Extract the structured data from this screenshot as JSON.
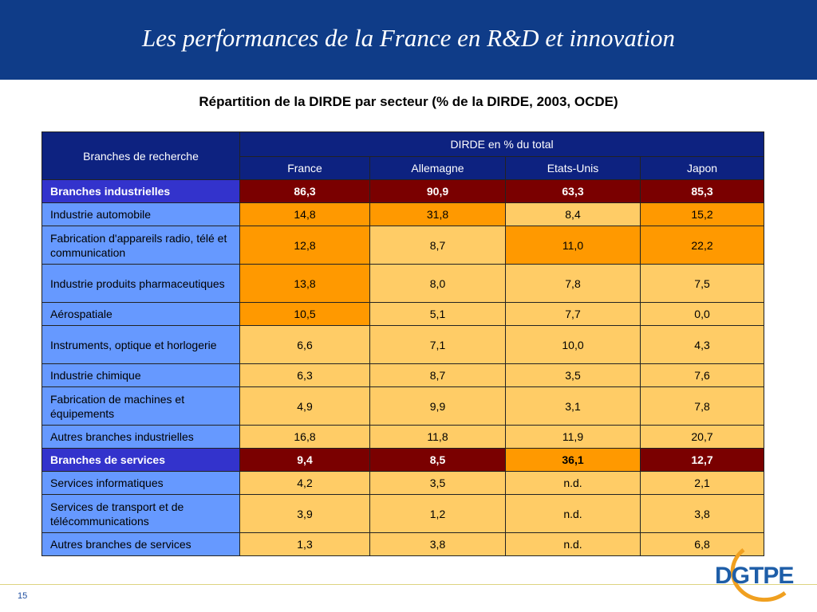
{
  "header": {
    "title": "Les performances de la France en R&D et innovation"
  },
  "subtitle": "Répartition de la DIRDE par secteur (% de la DIRDE, 2003, OCDE)",
  "table": {
    "corner": "Branches de recherche",
    "group_header": "DIRDE en % du total",
    "columns": [
      "France",
      "Allemagne",
      "Etats-Unis",
      "Japon"
    ],
    "rows": [
      {
        "label": "Branches industrielles",
        "cells": [
          "86,3",
          "90,9",
          "63,3",
          "85,3"
        ]
      },
      {
        "label": "Industrie automobile",
        "cells": [
          "14,8",
          "31,8",
          "8,4",
          "15,2"
        ]
      },
      {
        "label": "Fabrication d'appareils radio, télé et communication",
        "cells": [
          "12,8",
          "8,7",
          "11,0",
          "22,2"
        ]
      },
      {
        "label": "Industrie produits pharmaceutiques",
        "cells": [
          "13,8",
          "8,0",
          "7,8",
          "7,5"
        ]
      },
      {
        "label": "Aérospatiale",
        "cells": [
          "10,5",
          "5,1",
          "7,7",
          "0,0"
        ]
      },
      {
        "label": "Instruments, optique et horlogerie",
        "cells": [
          "6,6",
          "7,1",
          "10,0",
          "4,3"
        ]
      },
      {
        "label": "Industrie chimique",
        "cells": [
          "6,3",
          "8,7",
          "3,5",
          "7,6"
        ]
      },
      {
        "label": "Fabrication de machines et équipements",
        "cells": [
          "4,9",
          "9,9",
          "3,1",
          "7,8"
        ]
      },
      {
        "label": "Autres branches industrielles",
        "cells": [
          "16,8",
          "11,8",
          "11,9",
          "20,7"
        ]
      },
      {
        "label": "Branches de services",
        "cells": [
          "9,4",
          "8,5",
          "36,1",
          "12,7"
        ]
      },
      {
        "label": "Services informatiques",
        "cells": [
          "4,2",
          "3,5",
          "n.d.",
          "2,1"
        ]
      },
      {
        "label": "Services de transport et de télécommunications",
        "cells": [
          "3,9",
          "1,2",
          "n.d.",
          "3,8"
        ]
      },
      {
        "label": "Autres branches de services",
        "cells": [
          "1,3",
          "3,8",
          "n.d.",
          "6,8"
        ]
      }
    ]
  },
  "colors": {
    "header_bg": "#0f3c88",
    "table_header_bg": "#0d2280",
    "row_label_bg": "#6699ff",
    "section_label_bg": "#3333cc",
    "total_cell_bg": "#7a0000",
    "cell_light": "#ffcc66",
    "cell_highlight": "#ff9900"
  },
  "footer": {
    "page_number": "15",
    "logo_text": "DGTPE"
  }
}
